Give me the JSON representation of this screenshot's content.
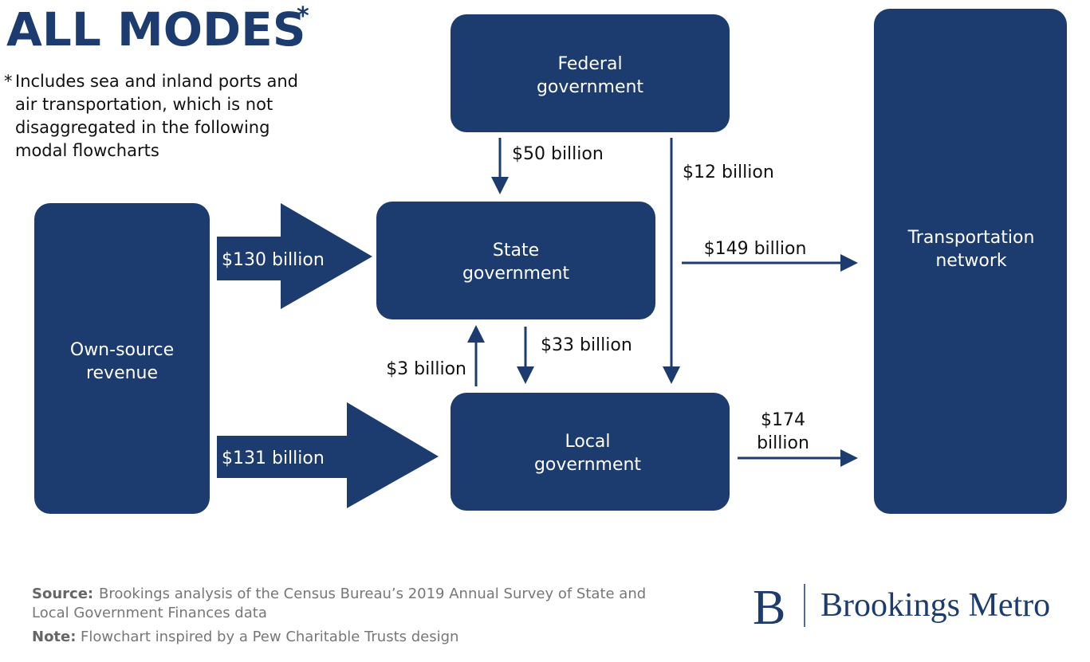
{
  "header": {
    "title": "ALL MODES",
    "title_marker": "*",
    "footnote_marker": "*",
    "footnote_lines": [
      "Includes sea and inland ports and",
      "air transportation, which is not",
      "disaggregated in the following",
      "modal flowcharts"
    ]
  },
  "nodes": [
    {
      "label_lines": [
        "Federal",
        "government"
      ]
    },
    {
      "label_lines": [
        "State",
        "government"
      ]
    },
    {
      "label_lines": [
        "Local",
        "government"
      ]
    },
    {
      "label_lines": [
        "Own-source",
        "revenue"
      ]
    },
    {
      "label_lines": [
        "Transportation",
        "network"
      ]
    }
  ],
  "edges": [
    {
      "label_lines": [
        "$50 billion"
      ]
    },
    {
      "label_lines": [
        "$12 billion"
      ]
    },
    {
      "label_lines": [
        "$130 billion"
      ]
    },
    {
      "label_lines": [
        "$149 billion"
      ]
    },
    {
      "label_lines": [
        "$33 billion"
      ]
    },
    {
      "label_lines": [
        "$3 billion"
      ]
    },
    {
      "label_lines": [
        "$131 billion"
      ]
    },
    {
      "label_lines": [
        "$174",
        "billion"
      ]
    }
  ],
  "footer": {
    "source_label": "Source:",
    "source_lines": [
      "Brookings analysis of the Census Bureau’s 2019 Annual Survey of State and",
      "Local Government Finances data"
    ],
    "note_label": "Note:",
    "note_text": "Flowchart inspired by a Pew Charitable Trusts design",
    "logo_mark": "B",
    "logo_text": "Brookings Metro"
  }
}
